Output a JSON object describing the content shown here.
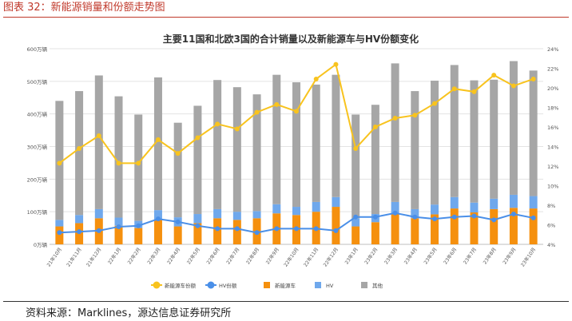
{
  "caption": "图表 32：新能源销量和份额走势图",
  "source": "资料来源：Marklines，源达信息证券研究所",
  "chart_data": {
    "type": "bar",
    "title": "主要11国和北欧3国的合计销量以及新能源车与HV份额变化",
    "categories": [
      "21年10月",
      "21年11月",
      "21年12月",
      "22年1月",
      "22年2月",
      "22年3月",
      "22年4月",
      "22年5月",
      "22年6月",
      "22年7月",
      "22年8月",
      "22年9月",
      "22年10月",
      "22年11月",
      "22年12月",
      "23年1月",
      "23年2月",
      "23年3月",
      "23年4月",
      "23年5月",
      "23年6月",
      "23年7月",
      "23年8月",
      "23年9月",
      "23年10月"
    ],
    "ylim": [
      0,
      600
    ],
    "y_ticks": [
      "0万辆",
      "100万辆",
      "200万辆",
      "300万辆",
      "400万辆",
      "500万辆",
      "600万辆"
    ],
    "y2lim": [
      4,
      24
    ],
    "y2_ticks": [
      "4%",
      "6%",
      "8%",
      "10%",
      "12%",
      "14%",
      "16%",
      "18%",
      "20%",
      "22%",
      "24%"
    ],
    "grid": true,
    "legend_position": "bottom",
    "series": [
      {
        "name": "新能源车",
        "kind": "stacked-bar",
        "color": "#f5900e",
        "values": [
          55,
          65,
          80,
          57,
          50,
          75,
          55,
          65,
          80,
          75,
          80,
          95,
          90,
          100,
          115,
          55,
          68,
          95,
          80,
          92,
          110,
          98,
          108,
          112,
          110
        ]
      },
      {
        "name": "HV",
        "kind": "stacked-bar",
        "color": "#6fa8ec",
        "values": [
          20,
          25,
          28,
          25,
          22,
          30,
          28,
          28,
          28,
          25,
          22,
          28,
          25,
          30,
          30,
          25,
          25,
          35,
          28,
          30,
          35,
          30,
          32,
          40,
          38
        ]
      },
      {
        "name": "其他",
        "kind": "stacked-bar",
        "color": "#a6a6a6",
        "values": [
          365,
          380,
          410,
          372,
          326,
          407,
          290,
          332,
          396,
          382,
          358,
          397,
          382,
          360,
          375,
          318,
          335,
          425,
          362,
          380,
          405,
          375,
          365,
          410,
          385
        ]
      },
      {
        "name": "新能源车份额",
        "kind": "line",
        "axis": "right",
        "color": "#f8c31e",
        "values": [
          12.3,
          13.8,
          15.1,
          12.3,
          12.3,
          14.7,
          13.3,
          14.9,
          16.3,
          15.8,
          17.5,
          18.3,
          17.6,
          20.9,
          22.4,
          13.8,
          16.0,
          16.9,
          17.2,
          18.4,
          19.9,
          19.6,
          21.3,
          20.2,
          20.9
        ]
      },
      {
        "name": "HV份额",
        "kind": "line",
        "axis": "right",
        "color": "#4a8fe8",
        "values": [
          5.2,
          5.3,
          5.4,
          5.8,
          5.9,
          6.6,
          6.3,
          5.9,
          5.6,
          5.6,
          5.2,
          5.6,
          5.6,
          5.6,
          5.4,
          6.8,
          6.8,
          7.2,
          6.8,
          6.6,
          6.8,
          6.9,
          6.5,
          7.1,
          6.7
        ]
      }
    ],
    "legend": [
      {
        "name": "新能源车份额",
        "symbol": "line-dot",
        "color": "#f8c31e"
      },
      {
        "name": "HV份额",
        "symbol": "line-dot",
        "color": "#4a8fe8"
      },
      {
        "name": "新能源车",
        "symbol": "square",
        "color": "#f5900e"
      },
      {
        "name": "HV",
        "symbol": "square",
        "color": "#6fa8ec"
      },
      {
        "name": "其他",
        "symbol": "square",
        "color": "#a6a6a6"
      }
    ]
  }
}
